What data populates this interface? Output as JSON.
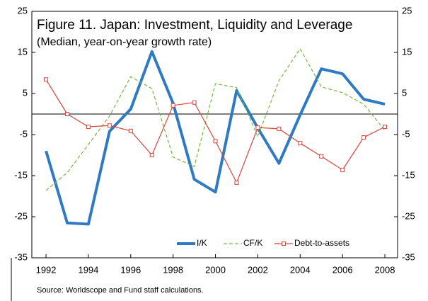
{
  "chart_data": {
    "type": "line",
    "title": "Figure 11. Japan: Investment, Liquidity and Leverage",
    "subtitle": "(Median, year-on-year growth rate)",
    "source": "Source: Worldscope and Fund staff calculations.",
    "x": [
      1992,
      1993,
      1994,
      1995,
      1996,
      1997,
      1998,
      1999,
      2000,
      2001,
      2002,
      2003,
      2004,
      2005,
      2006,
      2007,
      2008
    ],
    "xlim": [
      1991.33,
      2008.6
    ],
    "xticks": [
      1992,
      1994,
      1996,
      1998,
      2000,
      2002,
      2004,
      2006,
      2008
    ],
    "ylim": [
      -35,
      25
    ],
    "yticks": [
      -35,
      -25,
      -15,
      -5,
      5,
      15,
      25
    ],
    "y2lim": [
      -35,
      25
    ],
    "y2ticks": [
      -35,
      -25,
      -15,
      -5,
      5,
      15,
      25
    ],
    "reference_line": 0,
    "legend": "lower right",
    "series": [
      {
        "name": "I/K",
        "color": "#2e7bc4",
        "width": 4,
        "values": [
          -9,
          -26.5,
          -26.8,
          -4.2,
          1.2,
          15.2,
          2.6,
          -15.9,
          -19,
          5.7,
          -3.4,
          -12,
          -0.2,
          11,
          9.8,
          3.6,
          2.4
        ]
      },
      {
        "name": "CF/K",
        "color": "#77b843",
        "dash": "5,3",
        "values": [
          -18.6,
          -14.3,
          -7.4,
          -0.5,
          9.1,
          6.2,
          -10.5,
          -12.8,
          7.4,
          6.4,
          -5.5,
          8.1,
          15.9,
          6.6,
          5.2,
          2.4,
          -4
        ]
      },
      {
        "name": "Debt-to-assets",
        "color": "#d9453c",
        "marker": "square",
        "values": [
          8.4,
          0,
          -3.1,
          -2.8,
          -4.1,
          -10,
          2.1,
          2.8,
          -6.6,
          -16.7,
          -3.3,
          -3.6,
          -7.1,
          -10.3,
          -13.6,
          -5.7,
          -3.1
        ]
      }
    ]
  }
}
